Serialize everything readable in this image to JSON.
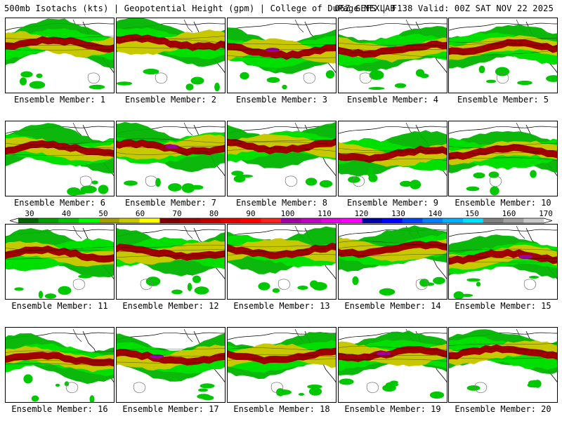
{
  "header": {
    "left": "500mb Isotachs (kts) | Geopotential Height (gpm) | College of DuPage NEXLAB",
    "right": "06Z GEFS | F138 Valid: 00Z SAT NOV 22 2025"
  },
  "panels": [
    {
      "label": "Ensemble Member: 1"
    },
    {
      "label": "Ensemble Member: 2"
    },
    {
      "label": "Ensemble Member: 3"
    },
    {
      "label": "Ensemble Member: 4"
    },
    {
      "label": "Ensemble Member: 5"
    },
    {
      "label": "Ensemble Member: 6"
    },
    {
      "label": "Ensemble Member: 7"
    },
    {
      "label": "Ensemble Member: 8"
    },
    {
      "label": "Ensemble Member: 9"
    },
    {
      "label": "Ensemble Member: 10"
    },
    {
      "label": "Ensemble Member: 11"
    },
    {
      "label": "Ensemble Member: 12"
    },
    {
      "label": "Ensemble Member: 13"
    },
    {
      "label": "Ensemble Member: 14"
    },
    {
      "label": "Ensemble Member: 15"
    },
    {
      "label": "Ensemble Member: 16"
    },
    {
      "label": "Ensemble Member: 17"
    },
    {
      "label": "Ensemble Member: 18"
    },
    {
      "label": "Ensemble Member: 19"
    },
    {
      "label": "Ensemble Member: 20"
    }
  ],
  "colorbar": {
    "tick_labels": [
      "30",
      "40",
      "50",
      "60",
      "70",
      "80",
      "90",
      "100",
      "110",
      "120",
      "130",
      "140",
      "150",
      "160",
      "170"
    ],
    "colors": [
      "#006400",
      "#00a000",
      "#00c800",
      "#00ff00",
      "#a0a000",
      "#c8c800",
      "#ffff00",
      "#800000",
      "#a00000",
      "#c00000",
      "#e00000",
      "#ff0000",
      "#ff2020",
      "#a000a0",
      "#c000c0",
      "#e000e0",
      "#ff00ff",
      "#0000a0",
      "#0000ff",
      "#0040ff",
      "#0080ff",
      "#00b0ff",
      "#00e0ff",
      "#808080",
      "#a0a0a0",
      "#c8c8c8"
    ]
  }
}
